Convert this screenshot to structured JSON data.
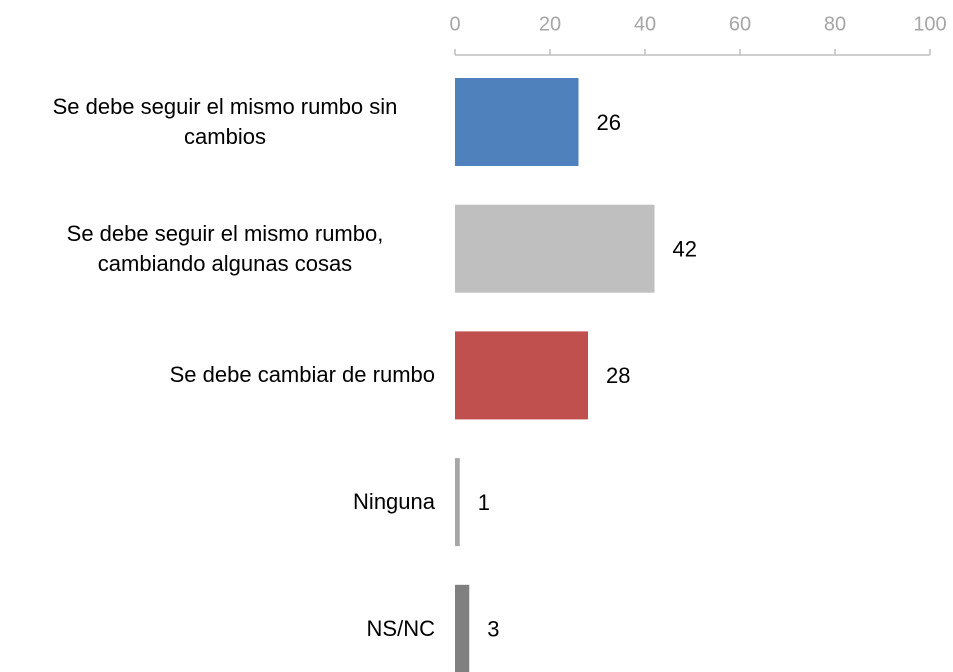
{
  "chart_data": {
    "type": "bar",
    "orientation": "horizontal",
    "categories": [
      "Se debe seguir el mismo rumbo sin cambios",
      "Se debe seguir el mismo rumbo, cambiando algunas cosas",
      "Se debe cambiar de rumbo",
      "Ninguna",
      "NS/NC"
    ],
    "values": [
      26,
      42,
      28,
      1,
      3
    ],
    "colors": [
      "#4f81bd",
      "#bfbfbf",
      "#c0504d",
      "#a6a6a6",
      "#808080"
    ],
    "xlim": [
      0,
      100
    ],
    "xticks": [
      0,
      20,
      40,
      60,
      80,
      100
    ],
    "axis_position": "top",
    "grid": false
  }
}
